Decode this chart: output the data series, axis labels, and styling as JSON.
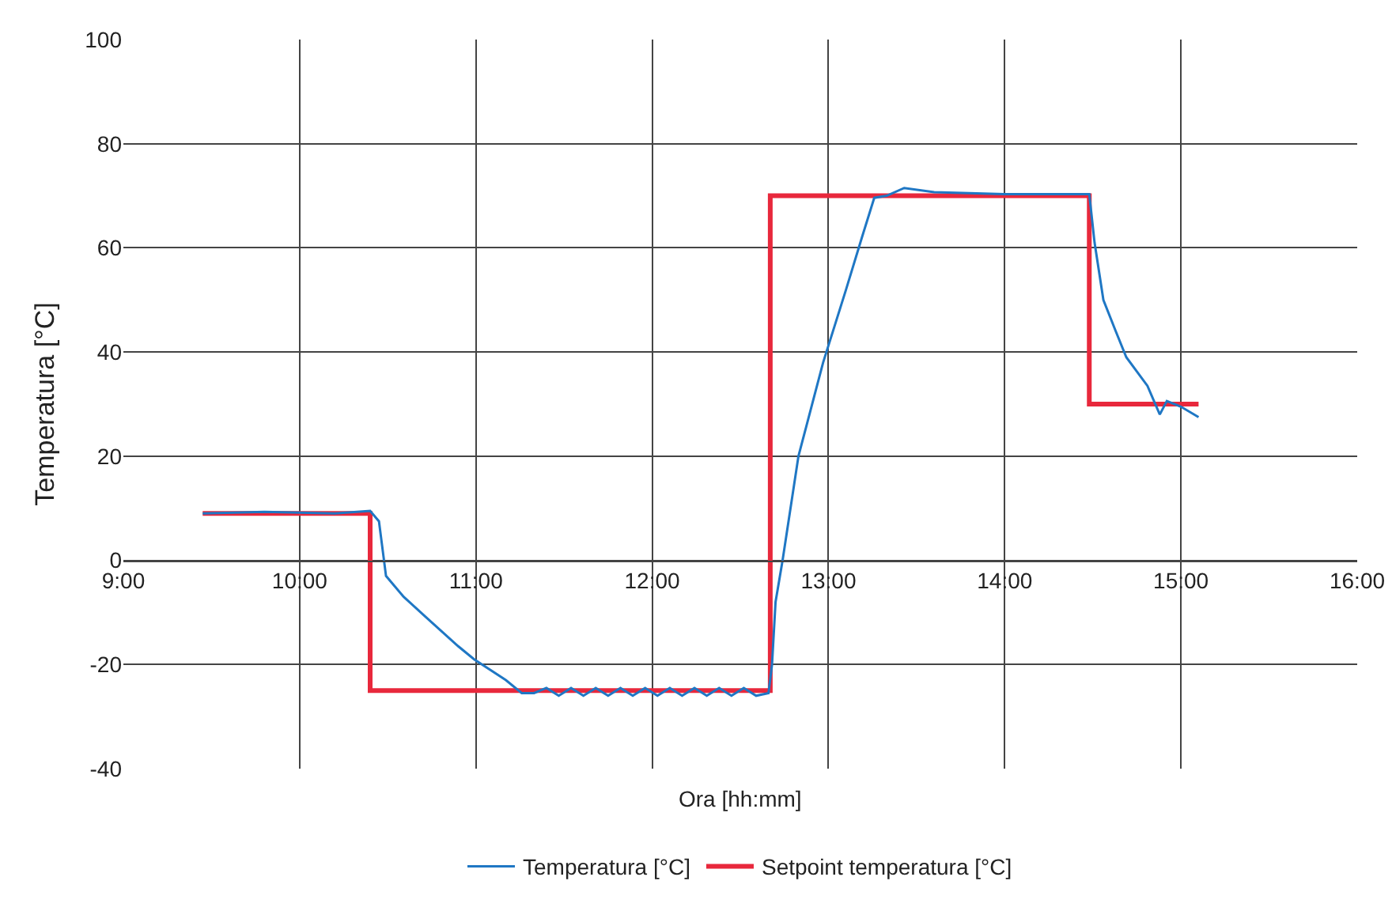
{
  "chart_data": {
    "type": "line",
    "xlabel": "Ora [hh:mm]",
    "ylabel": "Temperatura [°C]",
    "xlim": [
      9,
      16
    ],
    "xticks": [
      {
        "value": 9,
        "label": "9:00"
      },
      {
        "value": 10,
        "label": "10:00"
      },
      {
        "value": 11,
        "label": "11:00"
      },
      {
        "value": 12,
        "label": "12:00"
      },
      {
        "value": 13,
        "label": "13:00"
      },
      {
        "value": 14,
        "label": "14:00"
      },
      {
        "value": 15,
        "label": "15:00"
      },
      {
        "value": 16,
        "label": "16:00"
      }
    ],
    "ylim": [
      -40,
      100
    ],
    "yticks": [
      -40,
      -20,
      0,
      20,
      40,
      60,
      80,
      100
    ],
    "grid": true,
    "legend": "bottom",
    "marker": "none",
    "line_style": "solid",
    "series": [
      {
        "name": "Temperatura [°C]",
        "color": "#1f77c4",
        "x": [
          9.45,
          9.8,
          10.2,
          10.4,
          10.45,
          10.49,
          10.59,
          10.72,
          10.9,
          10.99,
          11.17,
          11.26,
          11.33,
          11.4,
          11.47,
          11.54,
          11.61,
          11.68,
          11.75,
          11.82,
          11.89,
          11.96,
          12.03,
          12.1,
          12.17,
          12.24,
          12.31,
          12.38,
          12.45,
          12.52,
          12.59,
          12.66,
          12.68,
          12.7,
          12.74,
          12.83,
          12.97,
          13.1,
          13.19,
          13.26,
          13.33,
          13.43,
          13.6,
          14.0,
          14.48,
          14.51,
          14.56,
          14.63,
          14.69,
          14.81,
          14.88,
          14.92,
          15.0,
          15.1
        ],
        "values": [
          9,
          9.3,
          9,
          9.5,
          7.5,
          -3,
          -7,
          -11,
          -16.5,
          -19,
          -23,
          -25.5,
          -25.5,
          -24.5,
          -26,
          -24.5,
          -26,
          -24.5,
          -26,
          -24.5,
          -26,
          -24.5,
          -26,
          -24.5,
          -26,
          -24.5,
          -26,
          -24.5,
          -26,
          -24.5,
          -26,
          -25.5,
          -20,
          -8,
          0,
          20,
          38,
          52,
          62,
          69.6,
          70,
          71.5,
          70.7,
          70.3,
          70.3,
          61,
          50,
          44,
          39,
          33.5,
          28,
          30.6,
          29.5,
          27.5
        ]
      },
      {
        "name": "Setpoint temperatura [°C]",
        "color": "#e8283c",
        "type": "step",
        "x": [
          9.45,
          10.4,
          12.67,
          14.48,
          15.1
        ],
        "values": [
          9,
          -25,
          70,
          30,
          30
        ]
      }
    ]
  }
}
